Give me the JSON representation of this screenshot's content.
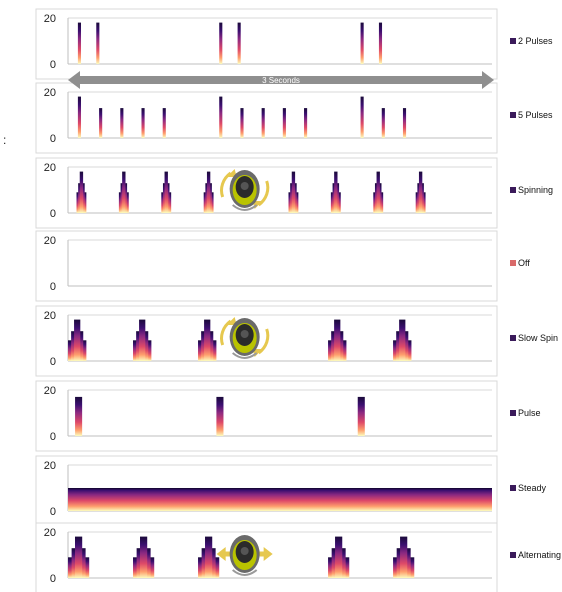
{
  "stray_mark": ":",
  "duration_label": "3 Seconds",
  "colors": {
    "frame": "#d9d9d9",
    "axis": "#bfbfbf",
    "heat": [
      "#1a0a3a",
      "#3b0f70",
      "#8c2981",
      "#de4968",
      "#fe9f6d",
      "#fcfdbf"
    ],
    "arrow": "#8f8f8f",
    "off_swatch": "#d96a6a",
    "motion_arrow": "#e6c84f",
    "device_body": "#2b2b2b",
    "device_ring": "#b9c300"
  },
  "icons": [
    "double-arrow-icon",
    "spinning-device-icon",
    "alternating-device-icon"
  ],
  "chart_data": [
    {
      "type": "bar",
      "legend": "2 Pulses",
      "ylim": [
        0,
        20
      ],
      "yticks": [
        0,
        20
      ],
      "x_range": [
        0,
        3
      ],
      "bars": [
        {
          "x": 0.07,
          "w": 0.022,
          "peak": 18
        },
        {
          "x": 0.2,
          "w": 0.022,
          "peak": 18
        },
        {
          "x": 1.07,
          "w": 0.022,
          "peak": 18
        },
        {
          "x": 1.2,
          "w": 0.022,
          "peak": 18
        },
        {
          "x": 2.07,
          "w": 0.022,
          "peak": 18
        },
        {
          "x": 2.2,
          "w": 0.022,
          "peak": 18
        }
      ]
    },
    {
      "type": "bar",
      "legend": "5 Pulses",
      "ylim": [
        0,
        20
      ],
      "yticks": [
        0,
        20
      ],
      "x_range": [
        0,
        3
      ],
      "bars": [
        {
          "x": 0.07,
          "w": 0.022,
          "peak": 18
        },
        {
          "x": 0.22,
          "w": 0.022,
          "peak": 13
        },
        {
          "x": 0.37,
          "w": 0.022,
          "peak": 13
        },
        {
          "x": 0.52,
          "w": 0.022,
          "peak": 13
        },
        {
          "x": 0.67,
          "w": 0.022,
          "peak": 13
        },
        {
          "x": 1.07,
          "w": 0.022,
          "peak": 18
        },
        {
          "x": 1.22,
          "w": 0.022,
          "peak": 13
        },
        {
          "x": 1.37,
          "w": 0.022,
          "peak": 13
        },
        {
          "x": 1.52,
          "w": 0.022,
          "peak": 13
        },
        {
          "x": 1.67,
          "w": 0.022,
          "peak": 13
        },
        {
          "x": 2.07,
          "w": 0.022,
          "peak": 18
        },
        {
          "x": 2.22,
          "w": 0.022,
          "peak": 13
        },
        {
          "x": 2.37,
          "w": 0.022,
          "peak": 13
        }
      ],
      "range_label": "3 Seconds"
    },
    {
      "type": "bar",
      "legend": "Spinning",
      "ylim": [
        0,
        20
      ],
      "yticks": [
        0,
        20
      ],
      "x_range": [
        0,
        3
      ],
      "pyramids": [
        {
          "x": 0.06,
          "w": 0.07,
          "peak": 18
        },
        {
          "x": 0.36,
          "w": 0.07,
          "peak": 18
        },
        {
          "x": 0.66,
          "w": 0.07,
          "peak": 18
        },
        {
          "x": 0.96,
          "w": 0.07,
          "peak": 18
        },
        {
          "x": 1.56,
          "w": 0.07,
          "peak": 18
        },
        {
          "x": 1.86,
          "w": 0.07,
          "peak": 18
        },
        {
          "x": 2.16,
          "w": 0.07,
          "peak": 18
        },
        {
          "x": 2.46,
          "w": 0.07,
          "peak": 18
        }
      ],
      "device": {
        "x": 1.25,
        "kind": "spin"
      }
    },
    {
      "type": "bar",
      "legend": "Off",
      "ylim": [
        0,
        20
      ],
      "yticks": [
        0,
        20
      ],
      "x_range": [
        0,
        3
      ],
      "bars": []
    },
    {
      "type": "bar",
      "legend": "Slow Spin",
      "ylim": [
        0,
        20
      ],
      "yticks": [
        0,
        20
      ],
      "x_range": [
        0,
        3
      ],
      "pyramids": [
        {
          "x": 0.0,
          "w": 0.13,
          "peak": 18
        },
        {
          "x": 0.46,
          "w": 0.13,
          "peak": 18
        },
        {
          "x": 0.92,
          "w": 0.13,
          "peak": 18
        },
        {
          "x": 1.84,
          "w": 0.13,
          "peak": 18
        },
        {
          "x": 2.3,
          "w": 0.13,
          "peak": 18
        }
      ],
      "device": {
        "x": 1.25,
        "kind": "spin"
      }
    },
    {
      "type": "bar",
      "legend": "Pulse",
      "ylim": [
        0,
        20
      ],
      "yticks": [
        0,
        20
      ],
      "x_range": [
        0,
        3
      ],
      "bars": [
        {
          "x": 0.05,
          "w": 0.05,
          "peak": 17
        },
        {
          "x": 1.05,
          "w": 0.05,
          "peak": 17
        },
        {
          "x": 2.05,
          "w": 0.05,
          "peak": 17
        }
      ]
    },
    {
      "type": "area",
      "legend": "Steady",
      "ylim": [
        0,
        20
      ],
      "yticks": [
        0,
        20
      ],
      "x_range": [
        0,
        3
      ],
      "steady": {
        "from": 0,
        "to": 3,
        "value": 10
      }
    },
    {
      "type": "bar",
      "legend": "Alternating",
      "ylim": [
        0,
        20
      ],
      "yticks": [
        0,
        20
      ],
      "x_range": [
        0,
        3
      ],
      "pyramids": [
        {
          "x": 0.0,
          "w": 0.15,
          "peak": 18
        },
        {
          "x": 0.46,
          "w": 0.15,
          "peak": 18
        },
        {
          "x": 0.92,
          "w": 0.15,
          "peak": 18
        },
        {
          "x": 1.84,
          "w": 0.15,
          "peak": 18
        },
        {
          "x": 2.3,
          "w": 0.15,
          "peak": 18
        }
      ],
      "device": {
        "x": 1.25,
        "kind": "alternate"
      }
    }
  ]
}
